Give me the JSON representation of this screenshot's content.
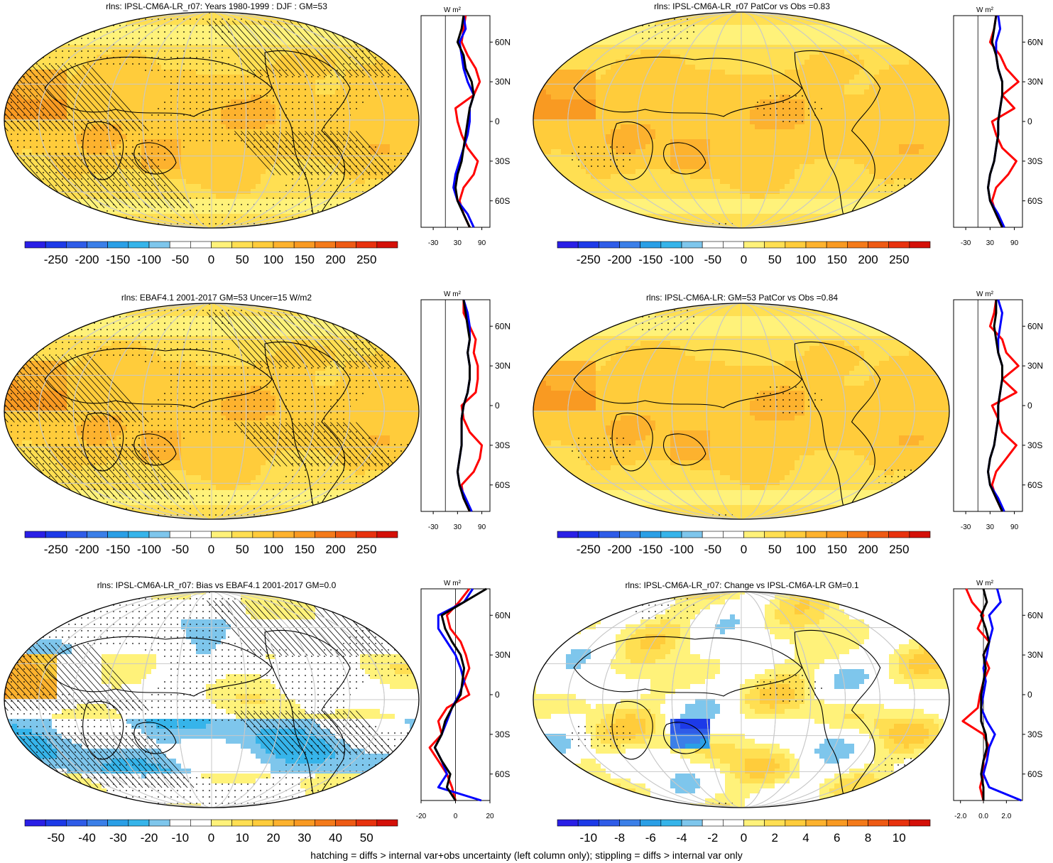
{
  "chart_data": [
    {
      "type": "heatmap",
      "title": "rlns: IPSL-CM6A-LR_r07: Years 1980-1999 : DJF : GM=53",
      "colorbar": {
        "ticks": [
          "-250",
          "-200",
          "-150",
          "-100",
          "-50",
          "0",
          "50",
          "100",
          "150",
          "200",
          "250"
        ],
        "range": [
          -275,
          275
        ]
      },
      "zonal": {
        "units": "W m²",
        "x_ticks": [
          "-30",
          "30",
          "90"
        ],
        "xlim": [
          -60,
          110
        ],
        "y_ticks": [
          "60N",
          "30N",
          "0",
          "30S",
          "60S"
        ],
        "ylim": [
          -80,
          80
        ],
        "series": [
          {
            "color": "#ff0000",
            "lat": [
              80,
              70,
              60,
              50,
              40,
              30,
              20,
              10,
              0,
              -10,
              -20,
              -30,
              -40,
              -50,
              -60,
              -70,
              -80
            ],
            "values": [
              50,
              45,
              40,
              55,
              75,
              85,
              70,
              25,
              30,
              40,
              55,
              80,
              70,
              45,
              35,
              45,
              60
            ]
          },
          {
            "color": "#0000ff",
            "lat": [
              80,
              70,
              60,
              50,
              40,
              30,
              20,
              10,
              0,
              -10,
              -20,
              -30,
              -40,
              -50,
              -60,
              -70,
              -80
            ],
            "values": [
              45,
              50,
              35,
              40,
              45,
              55,
              70,
              60,
              60,
              55,
              45,
              35,
              25,
              20,
              30,
              55,
              70
            ]
          },
          {
            "color": "#000000",
            "lat": [
              80,
              70,
              60,
              50,
              40,
              30,
              20,
              10,
              0,
              -10,
              -20,
              -30,
              -40,
              -50,
              -60,
              -70,
              -80
            ],
            "values": [
              45,
              40,
              30,
              45,
              50,
              65,
              70,
              60,
              55,
              50,
              45,
              40,
              30,
              25,
              30,
              45,
              60
            ]
          }
        ]
      }
    },
    {
      "type": "heatmap",
      "title": "rlns: IPSL-CM6A-LR_r07 PatCor vs Obs =0.83",
      "colorbar": {
        "ticks": [
          "-250",
          "-200",
          "-150",
          "-100",
          "-50",
          "0",
          "50",
          "100",
          "150",
          "200",
          "250"
        ],
        "range": [
          -275,
          275
        ]
      },
      "zonal": {
        "units": "W m²",
        "x_ticks": [
          "-30",
          "30",
          "90"
        ],
        "xlim": [
          -60,
          110
        ],
        "y_ticks": [
          "60N",
          "30N",
          "0",
          "30S",
          "60S"
        ],
        "ylim": [
          -80,
          80
        ],
        "series": [
          {
            "color": "#ff0000",
            "lat": [
              80,
              70,
              60,
              50,
              40,
              30,
              20,
              10,
              0,
              -10,
              -20,
              -30,
              -40,
              -50,
              -60,
              -70,
              -80
            ],
            "values": [
              45,
              40,
              30,
              55,
              70,
              100,
              60,
              90,
              35,
              45,
              60,
              95,
              75,
              45,
              35,
              45,
              60
            ]
          },
          {
            "color": "#0000ff",
            "lat": [
              80,
              70,
              60,
              50,
              40,
              30,
              20,
              10,
              0,
              -10,
              -20,
              -30,
              -40,
              -50,
              -60,
              -70,
              -80
            ],
            "values": [
              50,
              55,
              45,
              45,
              50,
              60,
              60,
              55,
              50,
              50,
              45,
              40,
              30,
              25,
              30,
              50,
              65
            ]
          },
          {
            "color": "#000000",
            "lat": [
              80,
              70,
              60,
              50,
              40,
              30,
              20,
              10,
              0,
              -10,
              -20,
              -30,
              -40,
              -50,
              -60,
              -70,
              -80
            ],
            "values": [
              45,
              40,
              35,
              45,
              50,
              60,
              60,
              55,
              50,
              50,
              45,
              40,
              30,
              25,
              30,
              45,
              60
            ]
          }
        ]
      }
    },
    {
      "type": "heatmap",
      "title": "rlns: EBAF4.1 2001-2017 GM=53 Uncer=15 W/m2",
      "colorbar": {
        "ticks": [
          "-250",
          "-200",
          "-150",
          "-100",
          "-50",
          "0",
          "50",
          "100",
          "150",
          "200",
          "250"
        ],
        "range": [
          -275,
          275
        ]
      },
      "zonal": {
        "units": "W m²",
        "x_ticks": [
          "-30",
          "30",
          "90"
        ],
        "xlim": [
          -60,
          110
        ],
        "y_ticks": [
          "60N",
          "30N",
          "0",
          "30S",
          "60S"
        ],
        "ylim": [
          -80,
          80
        ],
        "series": [
          {
            "color": "#ff0000",
            "lat": [
              80,
              70,
              60,
              50,
              40,
              30,
              20,
              10,
              0,
              -10,
              -20,
              -30,
              -40,
              -50,
              -60,
              -70,
              -80
            ],
            "values": [
              45,
              45,
              60,
              75,
              70,
              80,
              80,
              75,
              40,
              45,
              60,
              90,
              85,
              70,
              40,
              45,
              60
            ]
          },
          {
            "color": "#0000ff",
            "lat": [
              80,
              70,
              60,
              50,
              40,
              30,
              20,
              10,
              0,
              -10,
              -20,
              -30,
              -40,
              -50,
              -60,
              -70,
              -80
            ],
            "values": [
              45,
              55,
              60,
              60,
              55,
              60,
              60,
              55,
              45,
              40,
              40,
              40,
              35,
              30,
              35,
              50,
              65
            ]
          },
          {
            "color": "#000000",
            "lat": [
              80,
              70,
              60,
              50,
              40,
              30,
              20,
              10,
              0,
              -10,
              -20,
              -30,
              -40,
              -50,
              -60,
              -70,
              -80
            ],
            "values": [
              45,
              50,
              55,
              60,
              55,
              60,
              60,
              55,
              45,
              40,
              40,
              40,
              35,
              30,
              35,
              45,
              60
            ]
          }
        ]
      }
    },
    {
      "type": "heatmap",
      "title": "rlns: IPSL-CM6A-LR: GM=53 PatCor vs Obs =0.84",
      "colorbar": {
        "ticks": [
          "-250",
          "-200",
          "-150",
          "-100",
          "-50",
          "0",
          "50",
          "100",
          "150",
          "200",
          "250"
        ],
        "range": [
          -275,
          275
        ]
      },
      "zonal": {
        "units": "W m²",
        "x_ticks": [
          "-30",
          "30",
          "90"
        ],
        "xlim": [
          -60,
          110
        ],
        "y_ticks": [
          "60N",
          "30N",
          "0",
          "30S",
          "60S"
        ],
        "ylim": [
          -80,
          80
        ],
        "series": [
          {
            "color": "#ff0000",
            "lat": [
              80,
              70,
              60,
              50,
              40,
              30,
              20,
              10,
              0,
              -10,
              -20,
              -30,
              -40,
              -50,
              -60,
              -70,
              -80
            ],
            "values": [
              45,
              40,
              30,
              60,
              70,
              100,
              60,
              95,
              35,
              50,
              60,
              95,
              70,
              45,
              35,
              45,
              60
            ]
          },
          {
            "color": "#0000ff",
            "lat": [
              80,
              70,
              60,
              50,
              40,
              30,
              20,
              10,
              0,
              -10,
              -20,
              -30,
              -40,
              -50,
              -60,
              -70,
              -80
            ],
            "values": [
              50,
              60,
              55,
              50,
              50,
              60,
              60,
              55,
              50,
              50,
              45,
              40,
              30,
              25,
              30,
              50,
              65
            ]
          },
          {
            "color": "#000000",
            "lat": [
              80,
              70,
              60,
              50,
              40,
              30,
              20,
              10,
              0,
              -10,
              -20,
              -30,
              -40,
              -50,
              -60,
              -70,
              -80
            ],
            "values": [
              45,
              45,
              40,
              45,
              50,
              60,
              60,
              55,
              50,
              50,
              45,
              40,
              30,
              25,
              30,
              45,
              60
            ]
          }
        ]
      }
    },
    {
      "type": "heatmap",
      "title": "rlns: IPSL-CM6A-LR_r07: Bias vs EBAF4.1 2001-2017 GM=0.0",
      "colorbar": {
        "ticks": [
          "-50",
          "-40",
          "-30",
          "-20",
          "-10",
          "0",
          "10",
          "20",
          "30",
          "40",
          "50"
        ],
        "range": [
          -55,
          55
        ]
      },
      "zonal": {
        "units": "W m²",
        "x_ticks": [
          "-20",
          "0",
          "20"
        ],
        "xlim": [
          -20,
          20
        ],
        "y_ticks": [
          "60N",
          "30N",
          "0",
          "30S",
          "60S"
        ],
        "ylim": [
          -80,
          80
        ],
        "series": [
          {
            "color": "#ff0000",
            "lat": [
              80,
              70,
              60,
              50,
              40,
              30,
              20,
              10,
              0,
              -10,
              -20,
              -30,
              -40,
              -50,
              -60,
              -70,
              -80
            ],
            "values": [
              8,
              2,
              -5,
              -3,
              3,
              6,
              8,
              5,
              8,
              -5,
              -10,
              -8,
              -15,
              -10,
              -5,
              -2,
              0
            ]
          },
          {
            "color": "#0000ff",
            "lat": [
              80,
              70,
              60,
              50,
              40,
              30,
              20,
              10,
              0,
              -10,
              -20,
              -30,
              -40,
              -50,
              -60,
              -70,
              -80
            ],
            "values": [
              10,
              5,
              -10,
              -10,
              -5,
              0,
              3,
              5,
              2,
              -2,
              -5,
              -8,
              -12,
              -8,
              -5,
              -10,
              15
            ]
          },
          {
            "color": "#000000",
            "lat": [
              80,
              70,
              60,
              50,
              40,
              30,
              20,
              10,
              0,
              -10,
              -20,
              -30,
              -40,
              -50,
              -60,
              -70,
              -80
            ],
            "values": [
              18,
              5,
              -8,
              -6,
              -2,
              3,
              5,
              4,
              3,
              -2,
              -6,
              -8,
              -12,
              -8,
              -3,
              -5,
              0
            ]
          }
        ]
      }
    },
    {
      "type": "heatmap",
      "title": "rlns: IPSL-CM6A-LR_r07: Change vs IPSL-CM6A-LR GM=0.1",
      "colorbar": {
        "ticks": [
          "-10",
          "-8",
          "-6",
          "-4",
          "-2",
          "0",
          "2",
          "4",
          "6",
          "8",
          "10"
        ],
        "range": [
          -11,
          11
        ]
      },
      "zonal": {
        "units": "W m²",
        "x_ticks": [
          "-2.0",
          "0.0",
          "2.0"
        ],
        "xlim": [
          -2.6,
          3.4
        ],
        "y_ticks": [
          "60N",
          "30N",
          "0",
          "30S",
          "60S"
        ],
        "ylim": [
          -80,
          80
        ],
        "series": [
          {
            "color": "#ff0000",
            "lat": [
              80,
              70,
              60,
              50,
              40,
              30,
              20,
              10,
              0,
              -10,
              -20,
              -30,
              -40,
              -50,
              -60,
              -70,
              -80
            ],
            "values": [
              -1.5,
              -1.0,
              0.0,
              -0.5,
              0.5,
              0.0,
              0.5,
              0.0,
              -0.3,
              -0.5,
              -1.8,
              0.0,
              0.5,
              0.0,
              0.0,
              -0.3,
              0.0
            ]
          },
          {
            "color": "#0000ff",
            "lat": [
              80,
              70,
              60,
              50,
              40,
              30,
              20,
              10,
              0,
              -10,
              -20,
              -30,
              -40,
              -50,
              -60,
              -70,
              -80
            ],
            "values": [
              1.2,
              1.5,
              0.5,
              0.8,
              0.5,
              0.3,
              0.0,
              0.2,
              0.0,
              -0.2,
              0.3,
              1.0,
              0.5,
              0.3,
              0.0,
              0.5,
              3.3
            ]
          },
          {
            "color": "#000000",
            "lat": [
              80,
              70,
              60,
              50,
              40,
              30,
              20,
              10,
              0,
              -10,
              -20,
              -30,
              -40,
              -50,
              -60,
              -70,
              -80
            ],
            "values": [
              0.0,
              0.3,
              -0.2,
              0.2,
              0.5,
              0.0,
              0.2,
              0.0,
              -0.2,
              -0.2,
              -0.2,
              0.2,
              0.3,
              0.0,
              -0.2,
              0.0,
              0.0
            ]
          }
        ]
      }
    }
  ],
  "footer": "hatching = diffs > internal var+obs uncertainty (left column only); stippling = diffs > internal var only",
  "palette": [
    "#2a1fe6",
    "#1d3ae8",
    "#2f5ce8",
    "#3b7fe8",
    "#2a9fe6",
    "#36b4ea",
    "#7ec6ec",
    "#ffffff",
    "#ffffff",
    "#fff27a",
    "#ffdf52",
    "#ffcc3b",
    "#fdb22e",
    "#f99a22",
    "#f47a1a",
    "#ee5a14",
    "#e8320e",
    "#d41008"
  ]
}
